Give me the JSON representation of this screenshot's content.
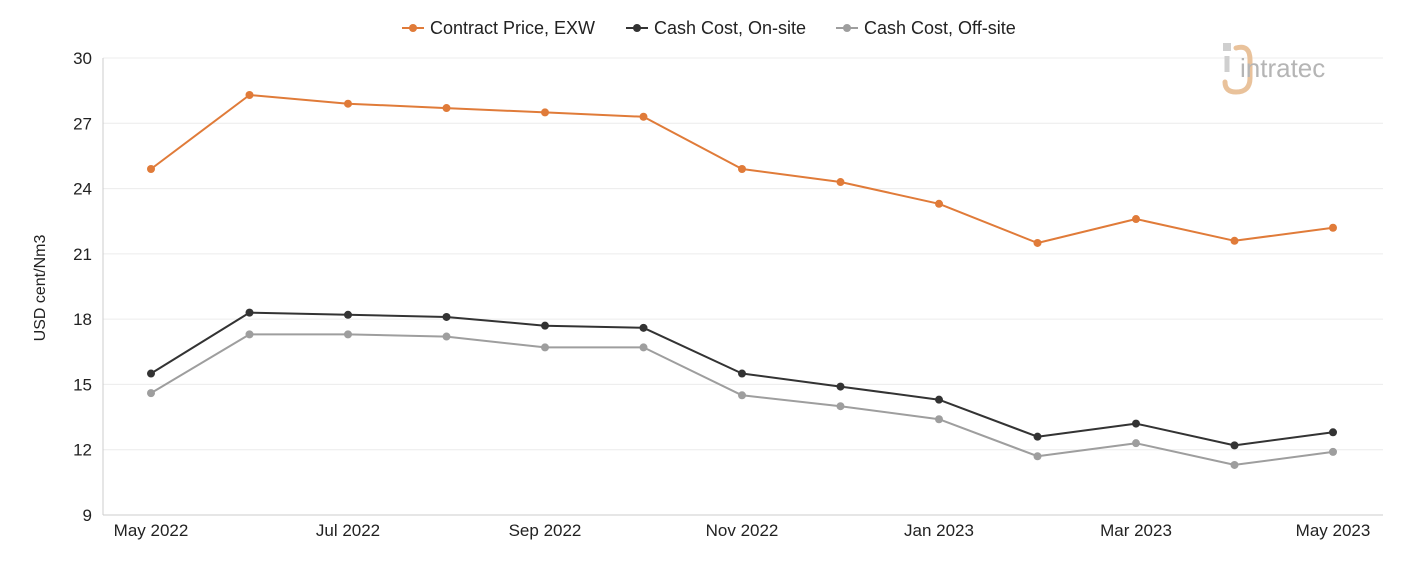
{
  "logo": {
    "text": "intratec",
    "primary_color": "#b5b5b5",
    "accent_color": "#e9c29b"
  },
  "chart_data": {
    "type": "line",
    "title": "",
    "xlabel": "",
    "ylabel": "USD cent/Nm3",
    "ylim": [
      9,
      30
    ],
    "yticks": [
      9,
      12,
      15,
      18,
      21,
      24,
      27,
      30
    ],
    "categories": [
      "May 2022",
      "Jun 2022",
      "Jul 2022",
      "Aug 2022",
      "Sep 2022",
      "Oct 2022",
      "Nov 2022",
      "Dec 2022",
      "Jan 2023",
      "Feb 2023",
      "Mar 2023",
      "Apr 2023",
      "May 2023"
    ],
    "xtick_labels": [
      "May 2022",
      "",
      "Jul 2022",
      "",
      "Sep 2022",
      "",
      "Nov 2022",
      "",
      "Jan 2023",
      "",
      "Mar 2023",
      "",
      "May 2023"
    ],
    "grid": "horizontal",
    "legend_position": "top",
    "series": [
      {
        "name": "Contract Price, EXW",
        "color": "#e07b39",
        "values": [
          24.9,
          28.3,
          27.9,
          27.7,
          27.5,
          27.3,
          24.9,
          24.3,
          23.3,
          21.5,
          22.6,
          21.6,
          22.2
        ]
      },
      {
        "name": "Cash Cost, On-site",
        "color": "#333333",
        "values": [
          15.5,
          18.3,
          18.2,
          18.1,
          17.7,
          17.6,
          15.5,
          14.9,
          14.3,
          12.6,
          13.2,
          12.2,
          12.8
        ]
      },
      {
        "name": "Cash Cost, Off-site",
        "color": "#9e9e9e",
        "values": [
          14.6,
          17.3,
          17.3,
          17.2,
          16.7,
          16.7,
          14.5,
          14.0,
          13.4,
          11.7,
          12.3,
          11.3,
          11.9
        ]
      }
    ]
  }
}
